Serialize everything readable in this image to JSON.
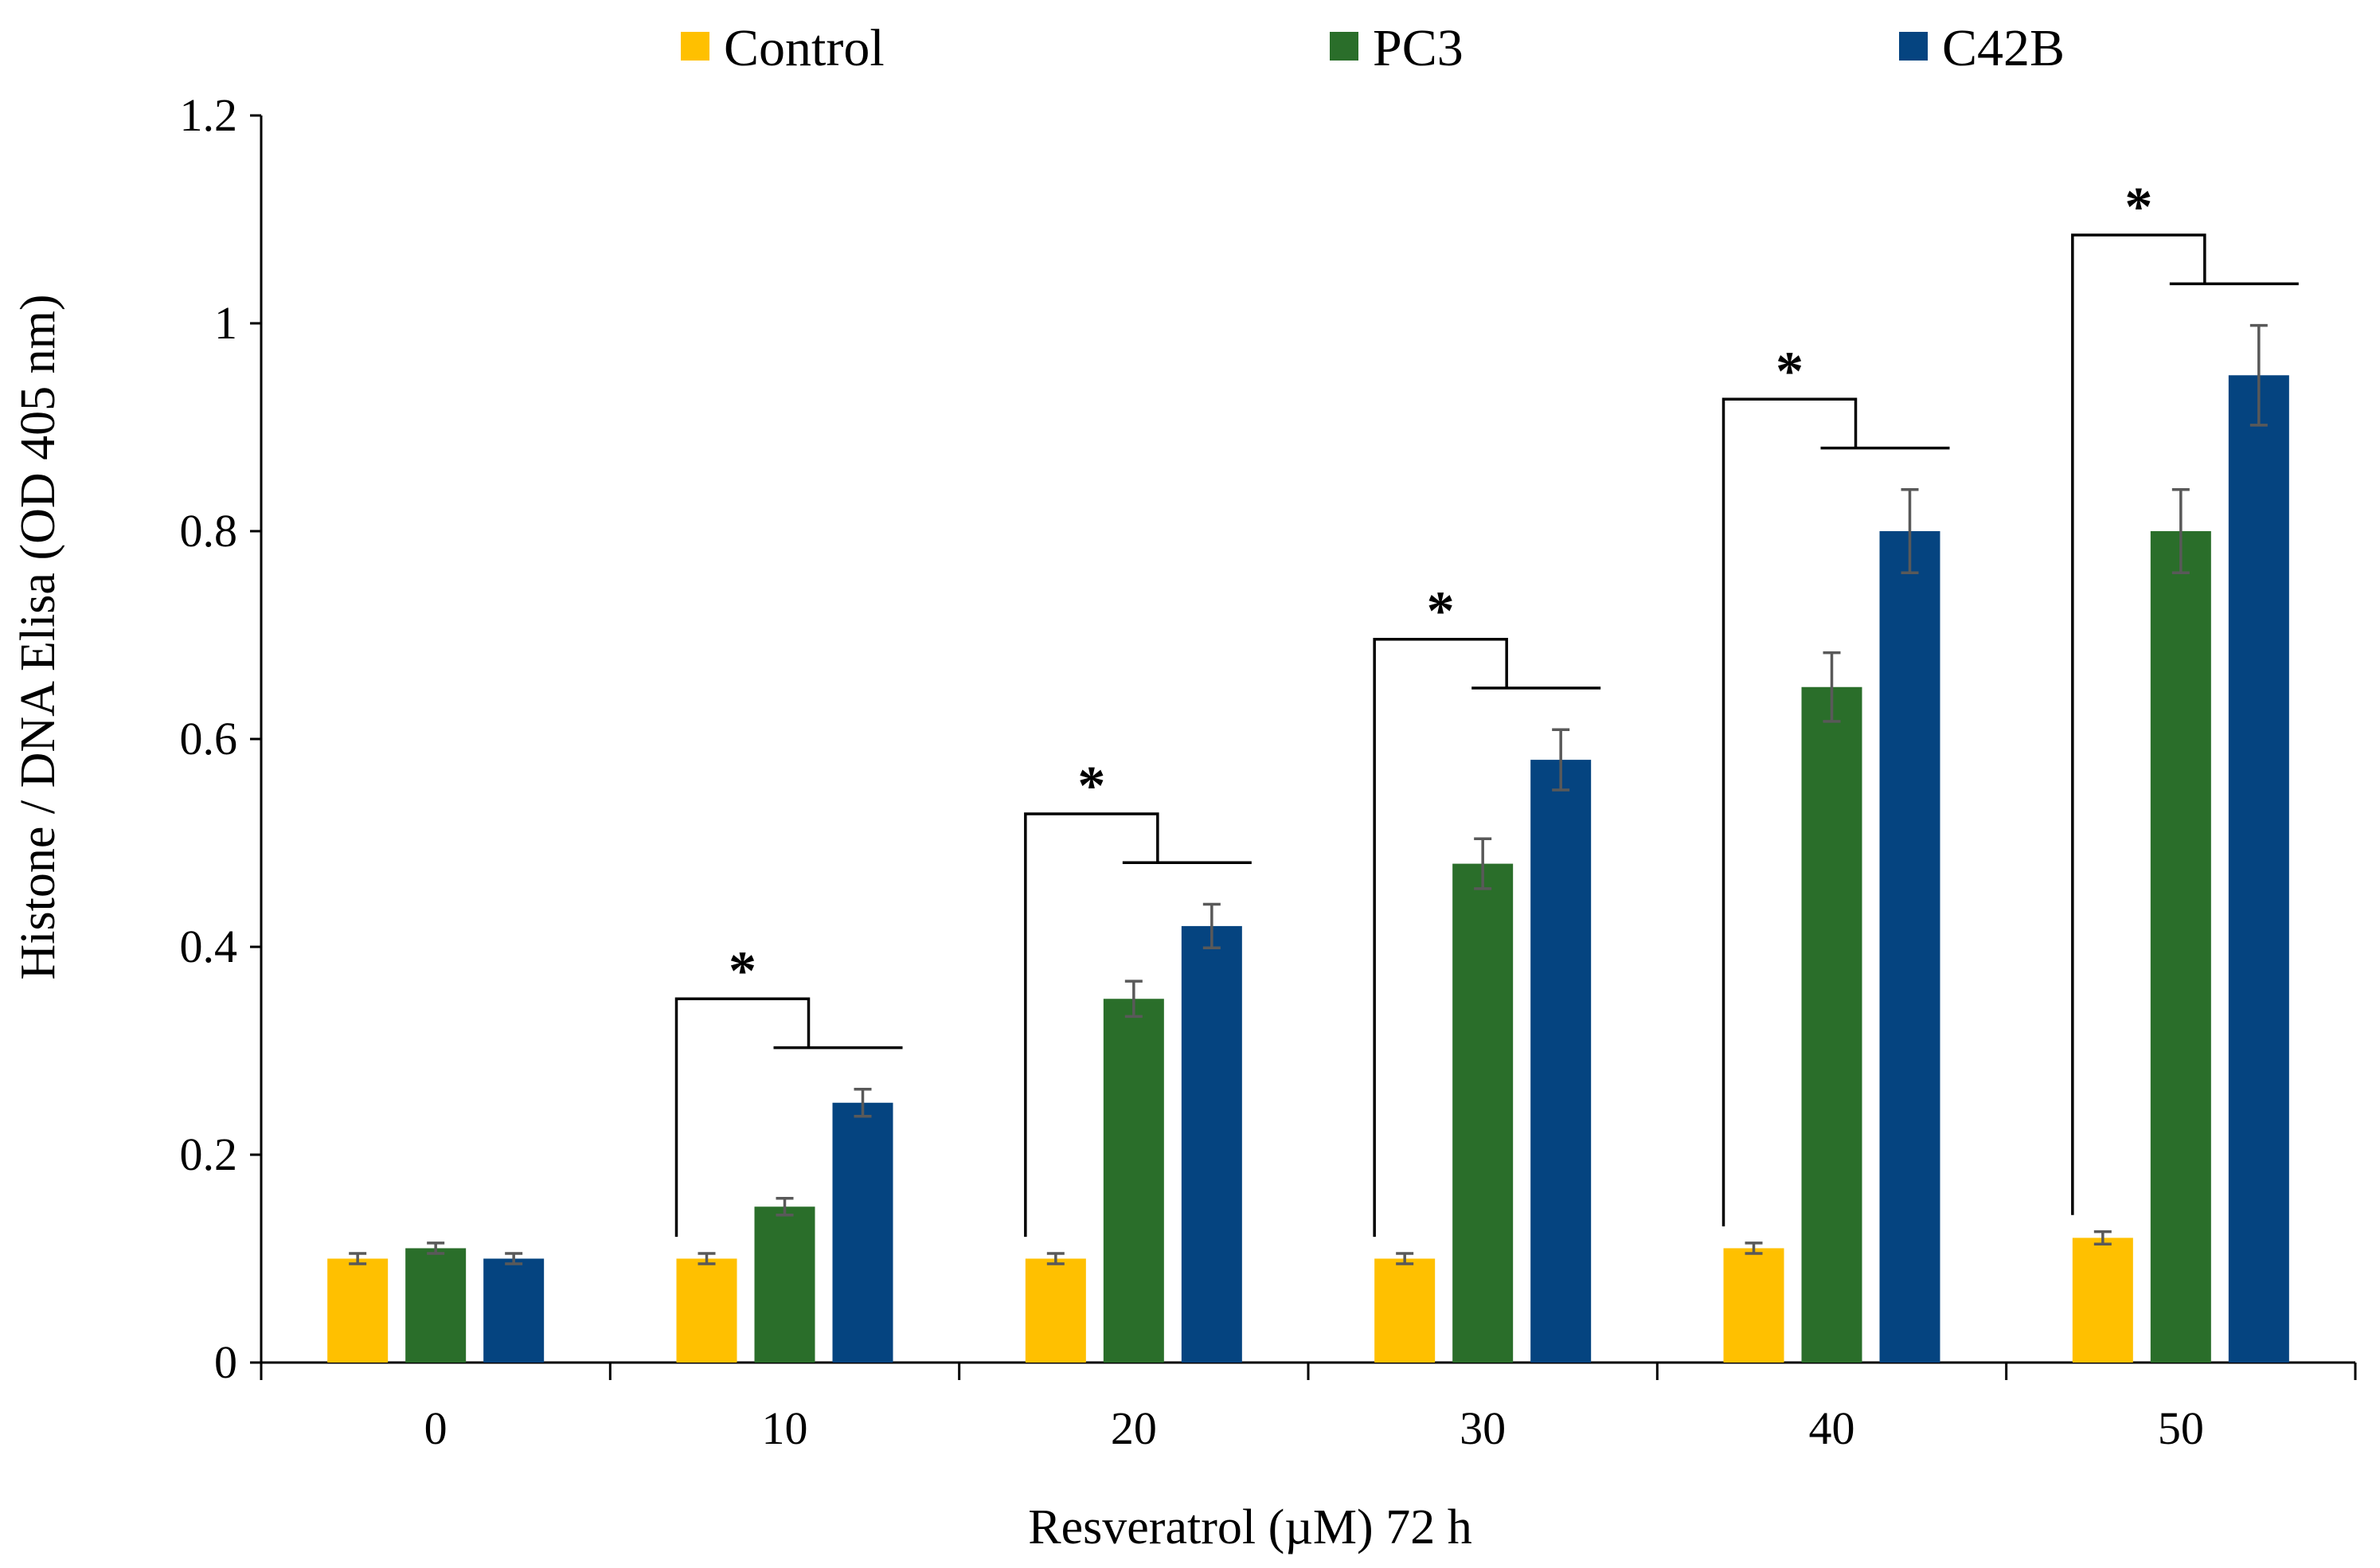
{
  "chart_data": {
    "type": "bar",
    "title": "",
    "xlabel": "Resveratrol (µM) 72 h",
    "ylabel": "Histone / DNA Elisa (OD 405 nm)",
    "categories": [
      "0",
      "10",
      "20",
      "30",
      "40",
      "50"
    ],
    "ylim": [
      0,
      1.2
    ],
    "yticks": [
      0,
      0.2,
      0.4,
      0.6,
      0.8,
      1,
      1.2
    ],
    "ytick_labels": [
      "0",
      "0.2",
      "0.4",
      "0.6",
      "0.8",
      "1",
      "1.2"
    ],
    "grid": false,
    "legend_position": "top",
    "series": [
      {
        "name": "Control",
        "color": "#FFC000",
        "values": [
          0.1,
          0.1,
          0.1,
          0.1,
          0.11,
          0.12
        ],
        "errors": [
          0.005,
          0.005,
          0.005,
          0.005,
          0.005,
          0.006
        ]
      },
      {
        "name": "PC3",
        "color": "#2A6E2A",
        "values": [
          0.11,
          0.15,
          0.35,
          0.48,
          0.65,
          0.8
        ],
        "errors": [
          0.005,
          0.008,
          0.017,
          0.024,
          0.033,
          0.04
        ]
      },
      {
        "name": "C42B",
        "color": "#054480",
        "values": [
          0.1,
          0.25,
          0.42,
          0.58,
          0.8,
          0.95
        ],
        "errors": [
          0.005,
          0.013,
          0.021,
          0.029,
          0.04,
          0.048
        ]
      }
    ],
    "annotations": [
      {
        "category": "10",
        "text": "*"
      },
      {
        "category": "20",
        "text": "*"
      },
      {
        "category": "30",
        "text": "*"
      },
      {
        "category": "40",
        "text": "*"
      },
      {
        "category": "50",
        "text": "*"
      }
    ]
  }
}
